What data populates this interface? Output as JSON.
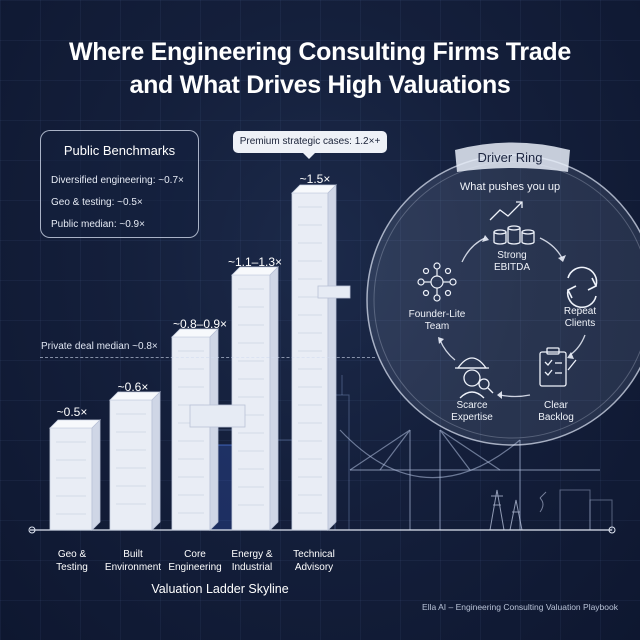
{
  "title": {
    "line1": "Where Engineering Consulting Firms Trade",
    "line2": "and What Drives High Valuations"
  },
  "benchmarks": {
    "title": "Public Benchmarks",
    "items": [
      "Diversified engineering: ~0.7×",
      "Geo & testing: ~0.5×",
      "Public median: ~0.9×"
    ]
  },
  "callout": "Premium strategic cases: 1.2×+",
  "private_median": "Private deal median ~0.8×",
  "ladder": [
    {
      "line1": "Geo &",
      "line2": "Testing",
      "multiple": "~0.5×"
    },
    {
      "line1": "Built",
      "line2": "Environment",
      "multiple": "~0.6×"
    },
    {
      "line1": "Core",
      "line2": "Engineering",
      "multiple": "~0.8–0.9×"
    },
    {
      "line1": "Energy &",
      "line2": "Industrial",
      "multiple": "~1.1–1.3×"
    },
    {
      "line1": "Technical",
      "line2": "Advisory",
      "multiple": "~1.5×"
    }
  ],
  "skyline_caption": "Valuation Ladder Skyline",
  "ring": {
    "title": "Driver Ring",
    "subtitle": "What pushes you up",
    "drivers": [
      {
        "line1": "Strong",
        "line2": "EBITDA",
        "icon": "growth-chart-coins-icon"
      },
      {
        "line1": "Repeat",
        "line2": "Clients",
        "icon": "repeat-cycle-icon"
      },
      {
        "line1": "Clear",
        "line2": "Backlog",
        "icon": "clipboard-checklist-icon"
      },
      {
        "line1": "Scarce",
        "line2": "Expertise",
        "icon": "engineer-hardhat-icon"
      },
      {
        "line1": "Founder-Lite",
        "line2": "Team",
        "icon": "network-team-icon"
      }
    ]
  },
  "footer": "Ella AI – Engineering Consulting Valuation Playbook",
  "colors": {
    "background": "#141f3b",
    "building": "#e9edf5",
    "accent": "#3b5bd9"
  }
}
